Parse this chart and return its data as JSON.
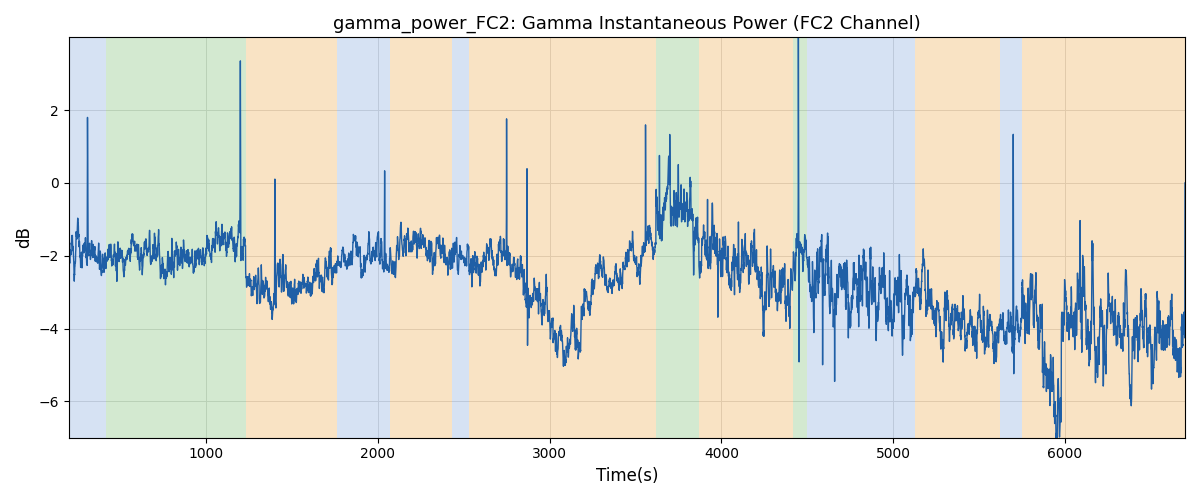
{
  "title": "gamma_power_FC2: Gamma Instantaneous Power (FC2 Channel)",
  "xlabel": "Time(s)",
  "ylabel": "dB",
  "xlim": [
    200,
    6700
  ],
  "ylim": [
    -7,
    4
  ],
  "yticks": [
    -6,
    -4,
    -2,
    0,
    2
  ],
  "xticks": [
    1000,
    2000,
    3000,
    4000,
    5000,
    6000
  ],
  "line_color": "#1f5fa6",
  "line_width": 1.0,
  "figsize": [
    12,
    5
  ],
  "dpi": 100,
  "bg_bands": [
    {
      "xmin": 200,
      "xmax": 415,
      "color": "#aec6e8",
      "alpha": 0.5
    },
    {
      "xmin": 415,
      "xmax": 1230,
      "color": "#a8d5a2",
      "alpha": 0.5
    },
    {
      "xmin": 1230,
      "xmax": 1760,
      "color": "#f5c98a",
      "alpha": 0.5
    },
    {
      "xmin": 1760,
      "xmax": 2070,
      "color": "#aec6e8",
      "alpha": 0.5
    },
    {
      "xmin": 2070,
      "xmax": 2430,
      "color": "#f5c98a",
      "alpha": 0.5
    },
    {
      "xmin": 2430,
      "xmax": 2530,
      "color": "#aec6e8",
      "alpha": 0.5
    },
    {
      "xmin": 2530,
      "xmax": 3620,
      "color": "#f5c98a",
      "alpha": 0.5
    },
    {
      "xmin": 3620,
      "xmax": 3870,
      "color": "#a8d5a2",
      "alpha": 0.5
    },
    {
      "xmin": 3870,
      "xmax": 4420,
      "color": "#f5c98a",
      "alpha": 0.5
    },
    {
      "xmin": 4420,
      "xmax": 4500,
      "color": "#a8d5a2",
      "alpha": 0.5
    },
    {
      "xmin": 4500,
      "xmax": 5130,
      "color": "#aec6e8",
      "alpha": 0.5
    },
    {
      "xmin": 5130,
      "xmax": 5620,
      "color": "#f5c98a",
      "alpha": 0.5
    },
    {
      "xmin": 5620,
      "xmax": 5750,
      "color": "#aec6e8",
      "alpha": 0.5
    },
    {
      "xmin": 5750,
      "xmax": 6700,
      "color": "#f5c98a",
      "alpha": 0.5
    }
  ],
  "seed": 123
}
